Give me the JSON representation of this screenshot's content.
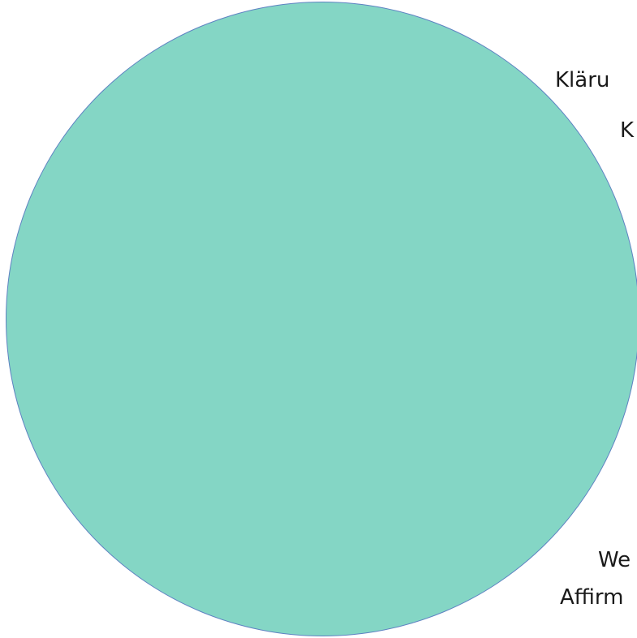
{
  "diagram": {
    "fill_color": "#84d6c5",
    "stroke_color": "#5e82c2",
    "labels": {
      "top_1": "Kläru",
      "top_2": "K",
      "bottom_1": "We",
      "bottom_2": "Affirm"
    }
  }
}
